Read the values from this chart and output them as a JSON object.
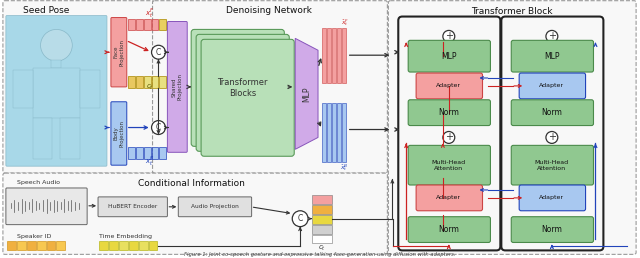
{
  "fig_width": 6.4,
  "fig_height": 2.58,
  "dpi": 100,
  "bg_color": "#ffffff",
  "caption": "Figure 1: ...",
  "seed_pose_label": "Seed Pose",
  "denoising_label": "Denoising Network",
  "conditional_label": "Conditional Information",
  "transformer_label": "Transformer Block",
  "color_face": "#f4a0a0",
  "color_body": "#a8c8f0",
  "color_green": "#90c890",
  "color_green_light": "#b8e0b8",
  "color_purple": "#d0aae8",
  "color_adapter_red": "#f4a0a0",
  "color_adapter_blue": "#a8c8f0",
  "color_norm": "#90c890",
  "color_mlp_box": "#90c890",
  "color_mha": "#90c890",
  "color_speaker": "#f0c070",
  "color_time": "#e8e060",
  "arrow_red": "#cc2222",
  "arrow_blue": "#2244bb",
  "arrow_black": "#333333",
  "panel_bg": "#f8f8f8",
  "panel_ec": "#888888",
  "tb_bg": "#f8f8f8",
  "tb_sub_bg": "#f0f0f0",
  "tb_sub_ec": "#333333"
}
